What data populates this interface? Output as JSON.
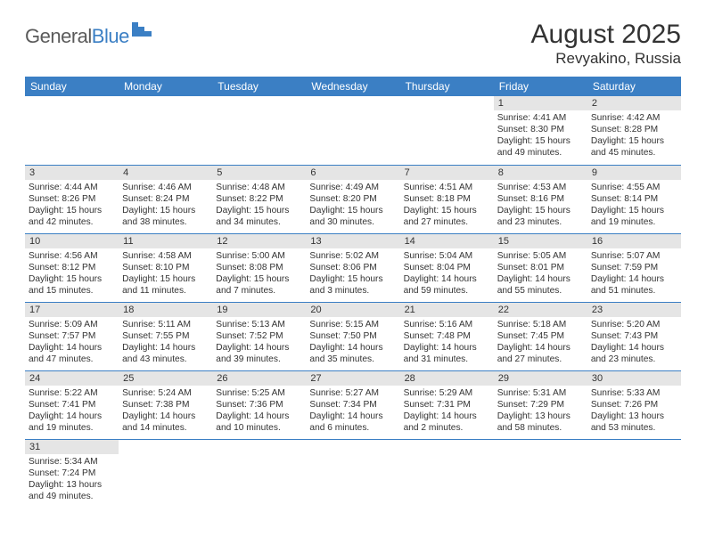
{
  "logo": {
    "word1": "General",
    "word2": "Blue"
  },
  "title": "August 2025",
  "location": "Revyakino, Russia",
  "colors": {
    "header_bg": "#3b7fc4",
    "header_text": "#ffffff",
    "daynum_bg": "#e5e5e5",
    "row_border": "#3b7fc4",
    "logo_gray": "#5a5a5a",
    "logo_blue": "#3b7fc4",
    "text": "#333333",
    "page_bg": "#ffffff"
  },
  "fonts": {
    "title_size": 30,
    "location_size": 17,
    "weekday_size": 12,
    "daynum_size": 11,
    "body_size": 10.2
  },
  "weekdays": [
    "Sunday",
    "Monday",
    "Tuesday",
    "Wednesday",
    "Thursday",
    "Friday",
    "Saturday"
  ],
  "weeks": [
    [
      null,
      null,
      null,
      null,
      null,
      {
        "n": "1",
        "sr": "Sunrise: 4:41 AM",
        "ss": "Sunset: 8:30 PM",
        "dl": "Daylight: 15 hours and 49 minutes."
      },
      {
        "n": "2",
        "sr": "Sunrise: 4:42 AM",
        "ss": "Sunset: 8:28 PM",
        "dl": "Daylight: 15 hours and 45 minutes."
      }
    ],
    [
      {
        "n": "3",
        "sr": "Sunrise: 4:44 AM",
        "ss": "Sunset: 8:26 PM",
        "dl": "Daylight: 15 hours and 42 minutes."
      },
      {
        "n": "4",
        "sr": "Sunrise: 4:46 AM",
        "ss": "Sunset: 8:24 PM",
        "dl": "Daylight: 15 hours and 38 minutes."
      },
      {
        "n": "5",
        "sr": "Sunrise: 4:48 AM",
        "ss": "Sunset: 8:22 PM",
        "dl": "Daylight: 15 hours and 34 minutes."
      },
      {
        "n": "6",
        "sr": "Sunrise: 4:49 AM",
        "ss": "Sunset: 8:20 PM",
        "dl": "Daylight: 15 hours and 30 minutes."
      },
      {
        "n": "7",
        "sr": "Sunrise: 4:51 AM",
        "ss": "Sunset: 8:18 PM",
        "dl": "Daylight: 15 hours and 27 minutes."
      },
      {
        "n": "8",
        "sr": "Sunrise: 4:53 AM",
        "ss": "Sunset: 8:16 PM",
        "dl": "Daylight: 15 hours and 23 minutes."
      },
      {
        "n": "9",
        "sr": "Sunrise: 4:55 AM",
        "ss": "Sunset: 8:14 PM",
        "dl": "Daylight: 15 hours and 19 minutes."
      }
    ],
    [
      {
        "n": "10",
        "sr": "Sunrise: 4:56 AM",
        "ss": "Sunset: 8:12 PM",
        "dl": "Daylight: 15 hours and 15 minutes."
      },
      {
        "n": "11",
        "sr": "Sunrise: 4:58 AM",
        "ss": "Sunset: 8:10 PM",
        "dl": "Daylight: 15 hours and 11 minutes."
      },
      {
        "n": "12",
        "sr": "Sunrise: 5:00 AM",
        "ss": "Sunset: 8:08 PM",
        "dl": "Daylight: 15 hours and 7 minutes."
      },
      {
        "n": "13",
        "sr": "Sunrise: 5:02 AM",
        "ss": "Sunset: 8:06 PM",
        "dl": "Daylight: 15 hours and 3 minutes."
      },
      {
        "n": "14",
        "sr": "Sunrise: 5:04 AM",
        "ss": "Sunset: 8:04 PM",
        "dl": "Daylight: 14 hours and 59 minutes."
      },
      {
        "n": "15",
        "sr": "Sunrise: 5:05 AM",
        "ss": "Sunset: 8:01 PM",
        "dl": "Daylight: 14 hours and 55 minutes."
      },
      {
        "n": "16",
        "sr": "Sunrise: 5:07 AM",
        "ss": "Sunset: 7:59 PM",
        "dl": "Daylight: 14 hours and 51 minutes."
      }
    ],
    [
      {
        "n": "17",
        "sr": "Sunrise: 5:09 AM",
        "ss": "Sunset: 7:57 PM",
        "dl": "Daylight: 14 hours and 47 minutes."
      },
      {
        "n": "18",
        "sr": "Sunrise: 5:11 AM",
        "ss": "Sunset: 7:55 PM",
        "dl": "Daylight: 14 hours and 43 minutes."
      },
      {
        "n": "19",
        "sr": "Sunrise: 5:13 AM",
        "ss": "Sunset: 7:52 PM",
        "dl": "Daylight: 14 hours and 39 minutes."
      },
      {
        "n": "20",
        "sr": "Sunrise: 5:15 AM",
        "ss": "Sunset: 7:50 PM",
        "dl": "Daylight: 14 hours and 35 minutes."
      },
      {
        "n": "21",
        "sr": "Sunrise: 5:16 AM",
        "ss": "Sunset: 7:48 PM",
        "dl": "Daylight: 14 hours and 31 minutes."
      },
      {
        "n": "22",
        "sr": "Sunrise: 5:18 AM",
        "ss": "Sunset: 7:45 PM",
        "dl": "Daylight: 14 hours and 27 minutes."
      },
      {
        "n": "23",
        "sr": "Sunrise: 5:20 AM",
        "ss": "Sunset: 7:43 PM",
        "dl": "Daylight: 14 hours and 23 minutes."
      }
    ],
    [
      {
        "n": "24",
        "sr": "Sunrise: 5:22 AM",
        "ss": "Sunset: 7:41 PM",
        "dl": "Daylight: 14 hours and 19 minutes."
      },
      {
        "n": "25",
        "sr": "Sunrise: 5:24 AM",
        "ss": "Sunset: 7:38 PM",
        "dl": "Daylight: 14 hours and 14 minutes."
      },
      {
        "n": "26",
        "sr": "Sunrise: 5:25 AM",
        "ss": "Sunset: 7:36 PM",
        "dl": "Daylight: 14 hours and 10 minutes."
      },
      {
        "n": "27",
        "sr": "Sunrise: 5:27 AM",
        "ss": "Sunset: 7:34 PM",
        "dl": "Daylight: 14 hours and 6 minutes."
      },
      {
        "n": "28",
        "sr": "Sunrise: 5:29 AM",
        "ss": "Sunset: 7:31 PM",
        "dl": "Daylight: 14 hours and 2 minutes."
      },
      {
        "n": "29",
        "sr": "Sunrise: 5:31 AM",
        "ss": "Sunset: 7:29 PM",
        "dl": "Daylight: 13 hours and 58 minutes."
      },
      {
        "n": "30",
        "sr": "Sunrise: 5:33 AM",
        "ss": "Sunset: 7:26 PM",
        "dl": "Daylight: 13 hours and 53 minutes."
      }
    ],
    [
      {
        "n": "31",
        "sr": "Sunrise: 5:34 AM",
        "ss": "Sunset: 7:24 PM",
        "dl": "Daylight: 13 hours and 49 minutes."
      },
      null,
      null,
      null,
      null,
      null,
      null
    ]
  ]
}
